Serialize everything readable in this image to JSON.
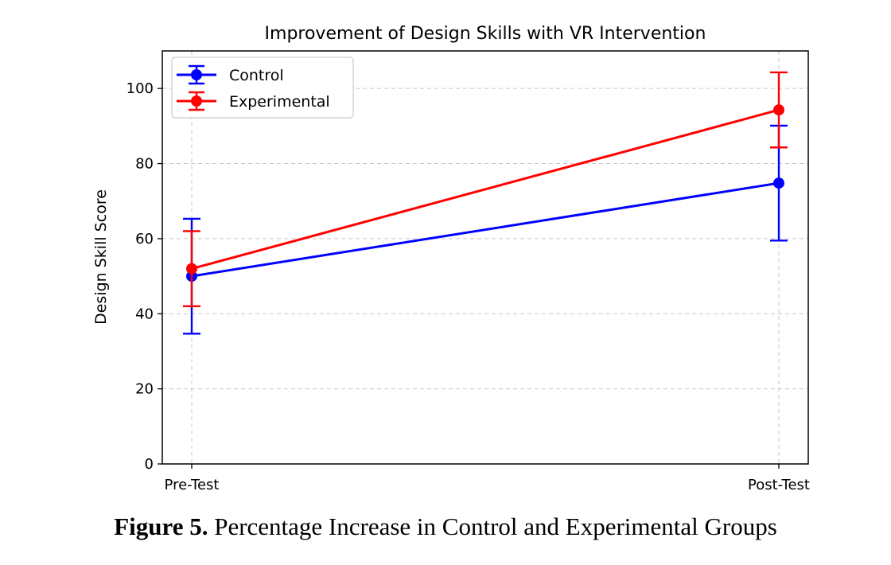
{
  "chart_data": {
    "type": "line",
    "title": "Improvement of Design Skills with VR Intervention",
    "xlabel": "",
    "ylabel": "Design Skill Score",
    "categories": [
      "Pre-Test",
      "Post-Test"
    ],
    "ylim": [
      0,
      110
    ],
    "yticks": [
      0,
      20,
      40,
      60,
      80,
      100
    ],
    "grid": true,
    "legend_position": "top-left",
    "series": [
      {
        "name": "Control",
        "color": "#0000ff",
        "values": [
          50,
          74.8
        ],
        "errors": [
          15.3,
          15.3
        ]
      },
      {
        "name": "Experimental",
        "color": "#ff0000",
        "values": [
          52,
          94.3
        ],
        "errors": [
          10,
          10
        ]
      }
    ]
  },
  "caption": {
    "label": "Figure 5.",
    "text": " Percentage Increase in Control and Experimental Groups"
  }
}
